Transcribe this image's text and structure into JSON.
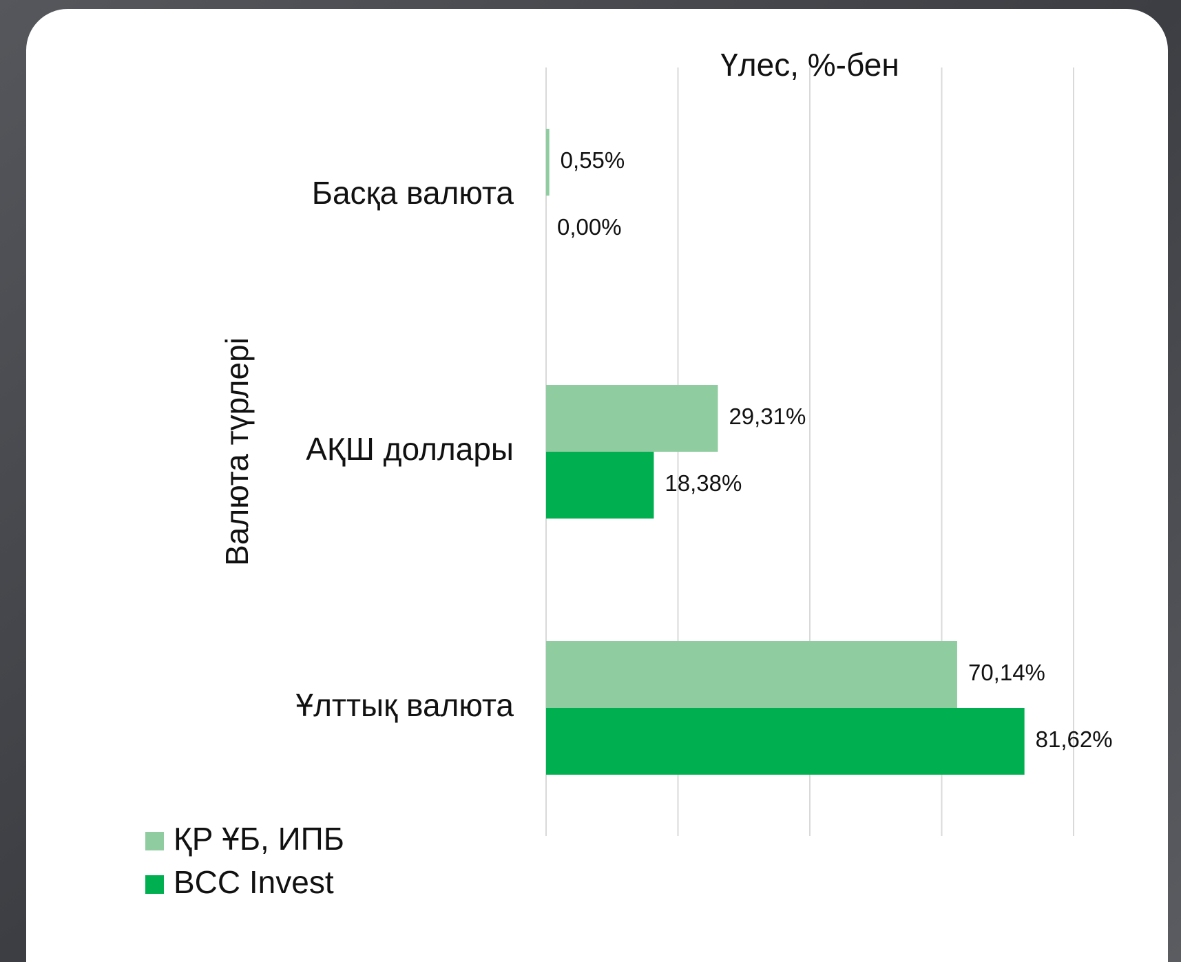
{
  "chart_data": {
    "type": "hbar",
    "title": "Үлес, %-бен",
    "y_axis_label": "Валюта түрлері",
    "categories": [
      "Басқа валюта",
      "АҚШ доллары",
      "Ұлттық валюта"
    ],
    "series": [
      {
        "name": "ҚР ҰБ, ИПБ",
        "color": "#8fcca0",
        "values": [
          0.55,
          29.31,
          70.14
        ],
        "value_labels": [
          "0,55%",
          "29,31%",
          "70,14%"
        ]
      },
      {
        "name": "BCC Invest",
        "color": "#00b050",
        "values": [
          0,
          18.38,
          81.62
        ],
        "value_labels": [
          "0,00%",
          "18,38%",
          "81,62%"
        ]
      }
    ],
    "xlim": [
      0,
      90
    ],
    "xticks": [
      0,
      22.5,
      45,
      67.5,
      90
    ],
    "grid": true,
    "legend": "bottom-left"
  }
}
